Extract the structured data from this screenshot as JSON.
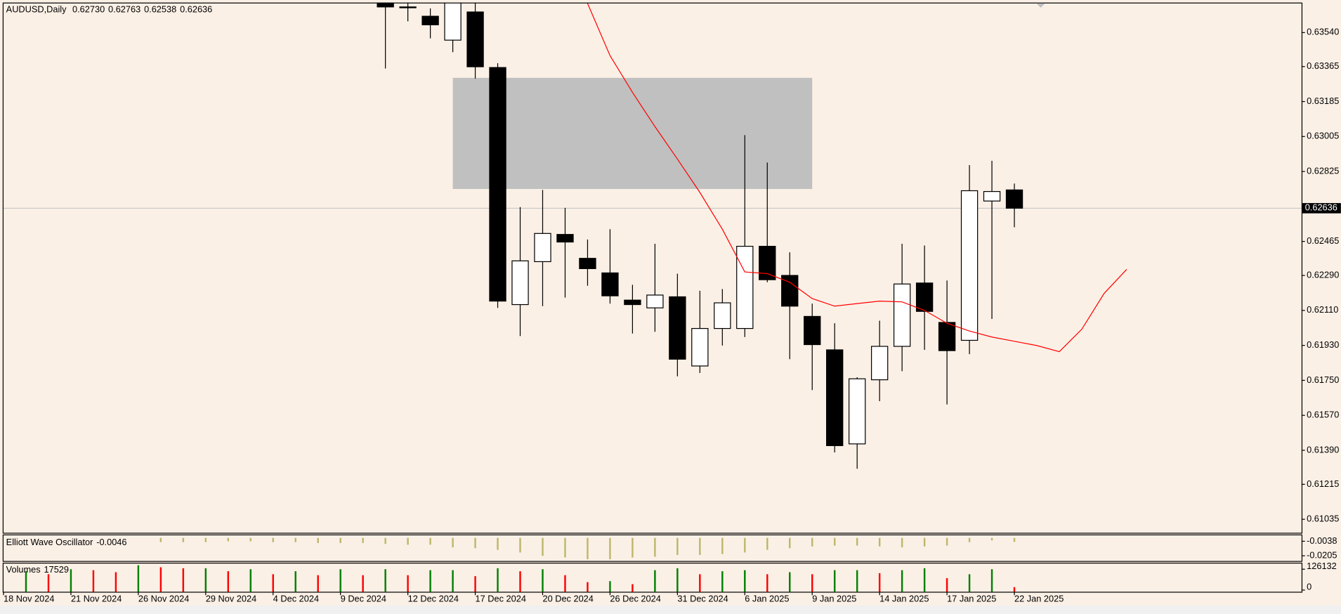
{
  "chart_data": {
    "type": "candlestick",
    "title": "AUDUSD,Daily",
    "header_values": [
      "0.62730",
      "0.62763",
      "0.62538",
      "0.62636"
    ],
    "categories": [
      "18 Nov 2024",
      null,
      null,
      "21 Nov 2024",
      null,
      null,
      "26 Nov 2024",
      null,
      null,
      "29 Nov 2024",
      null,
      null,
      "4 Dec 2024",
      null,
      null,
      "9 Dec 2024",
      null,
      null,
      "12 Dec 2024",
      null,
      null,
      "17 Dec 2024",
      null,
      null,
      "20 Dec 2024",
      null,
      null,
      "26 Dec 2024",
      null,
      null,
      "31 Dec 2024",
      null,
      null,
      "6 Jan 2025",
      null,
      null,
      "9 Jan 2025",
      null,
      null,
      "14 Jan 2025",
      null,
      null,
      "17 Jan 2025",
      null,
      null,
      "22 Jan 2025",
      null,
      null,
      null,
      null,
      null
    ],
    "candles": [
      null,
      null,
      null,
      null,
      null,
      null,
      null,
      null,
      null,
      null,
      null,
      null,
      null,
      null,
      null,
      null,
      null,
      {
        "o": 0.63692,
        "h": 0.637,
        "l": 0.63355,
        "c": 0.63672
      },
      {
        "o": 0.63672,
        "h": 0.63695,
        "l": 0.63598,
        "c": 0.63668
      },
      {
        "o": 0.63624,
        "h": 0.63664,
        "l": 0.6351,
        "c": 0.6358
      },
      {
        "o": 0.63501,
        "h": 0.6372,
        "l": 0.63439,
        "c": 0.637
      },
      {
        "o": 0.63646,
        "h": 0.637,
        "l": 0.63303,
        "c": 0.63364
      },
      {
        "o": 0.6336,
        "h": 0.63382,
        "l": 0.62123,
        "c": 0.62158
      },
      {
        "o": 0.6214,
        "h": 0.62642,
        "l": 0.61978,
        "c": 0.62365
      },
      {
        "o": 0.62361,
        "h": 0.6273,
        "l": 0.62132,
        "c": 0.62506
      },
      {
        "o": 0.62501,
        "h": 0.62638,
        "l": 0.62176,
        "c": 0.62462
      },
      {
        "o": 0.62378,
        "h": 0.62475,
        "l": 0.62237,
        "c": 0.62325
      },
      {
        "o": 0.62303,
        "h": 0.62528,
        "l": 0.62145,
        "c": 0.62185
      },
      {
        "o": 0.62163,
        "h": 0.62242,
        "l": 0.61991,
        "c": 0.6214
      },
      {
        "o": 0.62123,
        "h": 0.62453,
        "l": 0.62,
        "c": 0.62189
      },
      {
        "o": 0.6218,
        "h": 0.62299,
        "l": 0.61771,
        "c": 0.61859
      },
      {
        "o": 0.61824,
        "h": 0.62211,
        "l": 0.61788,
        "c": 0.62017
      },
      {
        "o": 0.62017,
        "h": 0.6222,
        "l": 0.61929,
        "c": 0.62149
      },
      {
        "o": 0.62017,
        "h": 0.63012,
        "l": 0.61973,
        "c": 0.6244
      },
      {
        "o": 0.6244,
        "h": 0.62871,
        "l": 0.62255,
        "c": 0.62268
      },
      {
        "o": 0.6229,
        "h": 0.62409,
        "l": 0.61859,
        "c": 0.62132
      },
      {
        "o": 0.62079,
        "h": 0.62145,
        "l": 0.617,
        "c": 0.61934
      },
      {
        "o": 0.61907,
        "h": 0.62044,
        "l": 0.61379,
        "c": 0.61414
      },
      {
        "o": 0.61423,
        "h": 0.61766,
        "l": 0.61295,
        "c": 0.61758
      },
      {
        "o": 0.61753,
        "h": 0.62057,
        "l": 0.61643,
        "c": 0.61925
      },
      {
        "o": 0.61925,
        "h": 0.62453,
        "l": 0.61797,
        "c": 0.62246
      },
      {
        "o": 0.62251,
        "h": 0.62444,
        "l": 0.61907,
        "c": 0.62105
      },
      {
        "o": 0.62048,
        "h": 0.62264,
        "l": 0.61626,
        "c": 0.61903
      },
      {
        "o": 0.61956,
        "h": 0.62858,
        "l": 0.61885,
        "c": 0.62726
      },
      {
        "o": 0.62673,
        "h": 0.6288,
        "l": 0.62066,
        "c": 0.62722
      },
      {
        "o": 0.6273,
        "h": 0.62763,
        "l": 0.62538,
        "c": 0.62636
      },
      null,
      null,
      null,
      null,
      null
    ],
    "ma": {
      "color": "#ff0000",
      "values": [
        null,
        null,
        null,
        null,
        null,
        null,
        null,
        null,
        null,
        null,
        null,
        null,
        null,
        null,
        null,
        null,
        null,
        null,
        null,
        null,
        null,
        null,
        null,
        null,
        null,
        null,
        0.6369,
        0.63421,
        0.63232,
        0.63056,
        0.62889,
        0.62717,
        0.62528,
        0.62308,
        0.62299,
        0.62255,
        0.62171,
        0.62132,
        0.62145,
        0.62158,
        0.62154,
        0.6211,
        0.62044,
        0.62004,
        0.61973,
        0.61951,
        0.61929,
        0.61898,
        0.62013,
        0.62198,
        0.62321
      ]
    },
    "zone": {
      "from": 20,
      "to": 36,
      "top": 0.63307,
      "bottom": 0.62735,
      "color": "#c0c0c0"
    },
    "ylim": [
      0.6097,
      0.6369
    ],
    "yticks": [
      {
        "value": 0.6354,
        "label": "0.63540"
      },
      0.63365,
      0.63185,
      0.63005,
      0.62825,
      0.62465,
      {
        "value": 0.6229,
        "label": "0.62290"
      },
      {
        "value": 0.6211,
        "label": "0.62110"
      },
      {
        "value": 0.6193,
        "label": "0.61930"
      },
      {
        "value": 0.6175,
        "label": "0.61750"
      },
      {
        "value": 0.6157,
        "label": "0.61570"
      },
      {
        "value": 0.6139,
        "label": "0.61390"
      },
      0.61215,
      0.61035
    ],
    "oscillator": {
      "name": "Elliott Wave Oscillator",
      "color": "#bdb76b",
      "values": [
        null,
        null,
        null,
        null,
        null,
        null,
        null,
        -0.0049,
        -0.0049,
        -0.0049,
        -0.0039,
        -0.0039,
        -0.0049,
        -0.0049,
        -0.0059,
        -0.0059,
        -0.0059,
        -0.0069,
        -0.0078,
        -0.0078,
        -0.0108,
        -0.0118,
        -0.0137,
        -0.0167,
        -0.0206,
        -0.0225,
        -0.0245,
        -0.0245,
        -0.0225,
        -0.0216,
        -0.0196,
        -0.0196,
        -0.0186,
        -0.0167,
        -0.0137,
        -0.0118,
        -0.0098,
        -0.0088,
        -0.0088,
        -0.0098,
        -0.0108,
        -0.0098,
        -0.0088,
        -0.0049,
        -0.0029,
        -0.0046,
        null,
        null,
        null,
        null,
        null
      ],
      "ylim": [
        -0.0255,
        0.002
      ],
      "yticks": [
        -0.0038,
        -0.0205
      ]
    },
    "volume": {
      "name": "Volumes",
      "up_color": "#008000",
      "down_color": "#ff0000",
      "values": [
        null,
        114000,
        96000,
        126000,
        120000,
        108000,
        150000,
        138000,
        132000,
        132000,
        114000,
        126000,
        96000,
        114000,
        90000,
        126000,
        90000,
        126000,
        90000,
        120000,
        120000,
        84000,
        132000,
        114000,
        126000,
        90000,
        48000,
        54000,
        36000,
        120000,
        132000,
        96000,
        114000,
        120000,
        96000,
        108000,
        96000,
        120000,
        120000,
        102000,
        120000,
        132000,
        72000,
        96000,
        126000,
        17529,
        null,
        null,
        null,
        null,
        null
      ],
      "ylim": [
        0,
        150000
      ],
      "yticks": [
        0,
        126132
      ]
    }
  }
}
